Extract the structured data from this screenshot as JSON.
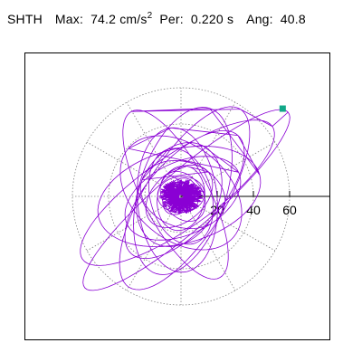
{
  "header": {
    "station": "SHTH",
    "max_label": "Max:",
    "max_value": "74.2",
    "max_unit": "cm/s",
    "max_unit_exp": "2",
    "per_label": "Per:",
    "per_value": "0.220 s",
    "ang_label": "Ang:",
    "ang_value": "40.8"
  },
  "chart_data": {
    "type": "polar",
    "radial_axis": {
      "ticks": [
        20,
        40,
        60
      ],
      "tick_labels": [
        "20",
        "40",
        "60"
      ],
      "rmax": 80,
      "grid_rings": [
        20,
        40,
        60
      ],
      "grid_spokes_deg": [
        0,
        30,
        60,
        90,
        120,
        150,
        180,
        210,
        240,
        270,
        300,
        330
      ],
      "grid_style": "dotted"
    },
    "colors": {
      "trace": "#8a00d4",
      "marker": "#11a888",
      "grid": "#808080",
      "axis": "#000000"
    },
    "peak_point": {
      "amplitude": 74.2,
      "angle_deg": 40.8
    },
    "trajectory_orbits": [
      {
        "a": 74.2,
        "b": 16,
        "rot_deg": 40.8,
        "ox": 3,
        "oy": -2
      },
      {
        "a": 64,
        "b": 20,
        "rot_deg": 35,
        "ox": -2,
        "oy": 2
      },
      {
        "a": 58,
        "b": 22,
        "rot_deg": 58,
        "ox": 2,
        "oy": -1
      },
      {
        "a": 52,
        "b": 18,
        "rot_deg": 118,
        "ox": -3,
        "oy": 1
      },
      {
        "a": 48,
        "b": 24,
        "rot_deg": 72,
        "ox": 1,
        "oy": 3
      },
      {
        "a": 46,
        "b": 26,
        "rot_deg": 15,
        "ox": -1,
        "oy": 0
      },
      {
        "a": 44,
        "b": 20,
        "rot_deg": 48,
        "ox": 2,
        "oy": 1
      },
      {
        "a": 40,
        "b": 22,
        "rot_deg": 95,
        "ox": -2,
        "oy": -2
      },
      {
        "a": 38,
        "b": 26,
        "rot_deg": 140,
        "ox": 0,
        "oy": 2
      },
      {
        "a": 34,
        "b": 20,
        "rot_deg": 25,
        "ox": 1,
        "oy": -1
      },
      {
        "a": 30,
        "b": 22,
        "rot_deg": 65,
        "ox": -1,
        "oy": 1
      },
      {
        "a": 27,
        "b": 17,
        "rot_deg": 105,
        "ox": 0,
        "oy": 0
      },
      {
        "a": 24,
        "b": 18,
        "rot_deg": 160,
        "ox": 1,
        "oy": 1
      },
      {
        "a": 21,
        "b": 14,
        "rot_deg": 40,
        "ox": -1,
        "oy": 0
      },
      {
        "a": 18,
        "b": 13,
        "rot_deg": 80,
        "ox": 0,
        "oy": -1
      },
      {
        "a": 15,
        "b": 11,
        "rot_deg": 125,
        "ox": 1,
        "oy": 0
      },
      {
        "a": 13,
        "b": 10,
        "rot_deg": 5,
        "ox": 0,
        "oy": 1
      },
      {
        "a": 11,
        "b": 8,
        "rot_deg": 55,
        "ox": -1,
        "oy": 0
      },
      {
        "a": 10,
        "b": 7,
        "rot_deg": 150,
        "ox": 0,
        "oy": 0
      },
      {
        "a": 8,
        "b": 6,
        "rot_deg": 100,
        "ox": 0,
        "oy": 0
      }
    ]
  }
}
